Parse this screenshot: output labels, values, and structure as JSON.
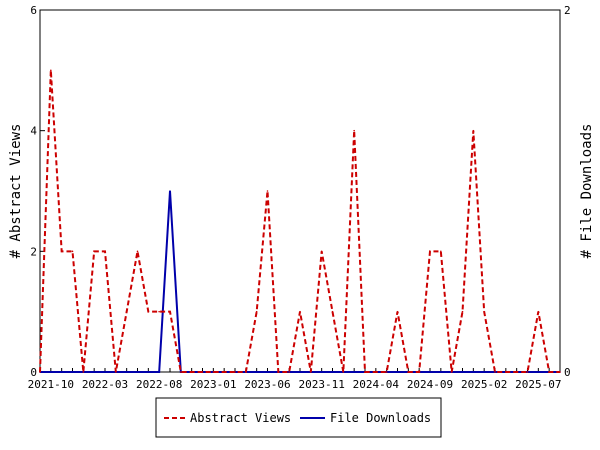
{
  "chart_data": {
    "type": "line",
    "x": [
      "2021-09",
      "2021-10",
      "2021-11",
      "2021-12",
      "2022-01",
      "2022-02",
      "2022-03",
      "2022-04",
      "2022-05",
      "2022-06",
      "2022-07",
      "2022-08",
      "2022-09",
      "2022-10",
      "2022-11",
      "2022-12",
      "2023-01",
      "2023-02",
      "2023-03",
      "2023-04",
      "2023-05",
      "2023-06",
      "2023-07",
      "2023-08",
      "2023-09",
      "2023-10",
      "2023-11",
      "2023-12",
      "2024-01",
      "2024-02",
      "2024-03",
      "2024-04",
      "2024-05",
      "2024-06",
      "2024-07",
      "2024-08",
      "2024-09",
      "2024-10",
      "2024-11",
      "2024-12",
      "2025-01",
      "2025-02",
      "2025-03",
      "2025-04",
      "2025-05",
      "2025-06",
      "2025-07",
      "2025-08",
      "2025-09"
    ],
    "series": [
      {
        "name": "Abstract Views",
        "axis": "left",
        "color": "#cc0000",
        "dash": "dashed",
        "values": [
          0,
          5,
          2,
          2,
          0,
          2,
          2,
          0,
          1,
          2,
          1,
          1,
          1,
          0,
          0,
          0,
          0,
          0,
          0,
          0,
          1,
          3,
          0,
          0,
          1,
          0,
          2,
          1,
          0,
          4,
          0,
          0,
          0,
          1,
          0,
          0,
          2,
          2,
          0,
          1,
          4,
          1,
          0,
          0,
          0,
          0,
          1,
          0,
          0
        ]
      },
      {
        "name": "File Downloads",
        "axis": "right",
        "color": "#0000aa",
        "dash": "solid",
        "values": [
          0,
          0,
          0,
          0,
          0,
          0,
          0,
          0,
          0,
          0,
          0,
          0,
          1,
          0,
          0,
          0,
          0,
          0,
          0,
          0,
          0,
          0,
          0,
          0,
          0,
          0,
          0,
          0,
          0,
          0,
          0,
          0,
          0,
          0,
          0,
          0,
          0,
          0,
          0,
          0,
          0,
          0,
          0,
          0,
          0,
          0,
          0,
          0,
          0
        ]
      }
    ],
    "xticks": [
      "2021-10",
      "2022-03",
      "2022-08",
      "2023-01",
      "2023-06",
      "2023-11",
      "2024-04",
      "2024-09",
      "2025-02",
      "2025-07"
    ],
    "xlabel": "",
    "ylabel": "# Abstract Views",
    "y2label": "# File Downloads",
    "ylim": [
      0,
      6
    ],
    "y2lim": [
      0,
      2
    ],
    "yticks": [
      "0",
      "2",
      "4",
      "6"
    ],
    "y2ticks": [
      "0",
      "2"
    ],
    "grid": false,
    "legend_position": "bottom-center"
  }
}
